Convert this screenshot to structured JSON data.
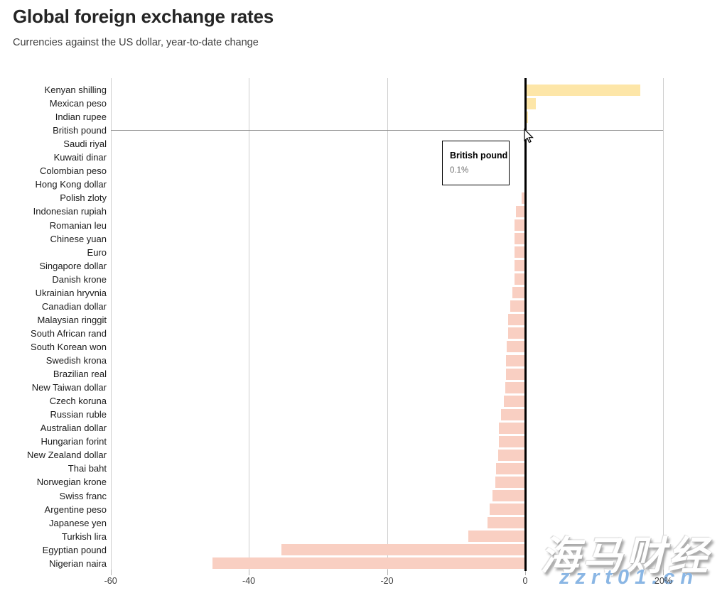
{
  "chart_data": {
    "type": "bar",
    "orientation": "horizontal",
    "title": "Global foreign exchange rates",
    "subtitle": "Currencies against the US dollar, year-to-date change",
    "unit": "%",
    "xlim": [
      -60,
      20
    ],
    "grid": true,
    "x_ticks": [
      {
        "label": "-60",
        "value": -60
      },
      {
        "label": "-40",
        "value": -40
      },
      {
        "label": "-20",
        "value": -20
      },
      {
        "label": "0",
        "value": 0
      },
      {
        "label": "20%",
        "value": 20
      }
    ],
    "categories": [
      "Kenyan shilling",
      "Mexican peso",
      "Indian rupee",
      "British pound",
      "Saudi riyal",
      "Kuwaiti dinar",
      "Colombian peso",
      "Hong Kong dollar",
      "Polish zloty",
      "Indonesian rupiah",
      "Romanian leu",
      "Chinese yuan",
      "Euro",
      "Singapore dollar",
      "Danish krone",
      "Ukrainian hryvnia",
      "Canadian dollar",
      "Malaysian ringgit",
      "South African rand",
      "South Korean won",
      "Swedish krona",
      "Brazilian real",
      "New Taiwan dollar",
      "Czech koruna",
      "Russian ruble",
      "Australian dollar",
      "Hungarian forint",
      "New Zealand dollar",
      "Thai baht",
      "Norwegian krone",
      "Swiss franc",
      "Argentine peso",
      "Japanese yen",
      "Turkish lira",
      "Egyptian pound",
      "Nigerian naira"
    ],
    "values": [
      16.7,
      1.5,
      0.4,
      0.1,
      0.0,
      0.0,
      0.0,
      0.0,
      -0.5,
      -1.3,
      -1.5,
      -1.5,
      -1.5,
      -1.5,
      -1.5,
      -1.9,
      -2.2,
      -2.5,
      -2.5,
      -2.7,
      -2.8,
      -2.8,
      -2.9,
      -3.1,
      -3.5,
      -3.8,
      -3.8,
      -3.9,
      -4.2,
      -4.3,
      -4.7,
      -5.1,
      -5.4,
      -8.2,
      -35.3,
      -45.3
    ],
    "highlighted_category": "British pound",
    "colors": {
      "positive_bar": "#fde6a8",
      "negative_bar": "#f9cfc2",
      "zero_axis": "#000000",
      "gridline": "#cfcfcf",
      "hover_line": "#8c8c8c"
    },
    "legend": null
  },
  "tooltip": {
    "title": "British pound",
    "value": "0.1%"
  },
  "watermark": {
    "line1": "海马财经",
    "line2": "zzrt01.cn",
    "url_color": "#8ab6e4"
  }
}
